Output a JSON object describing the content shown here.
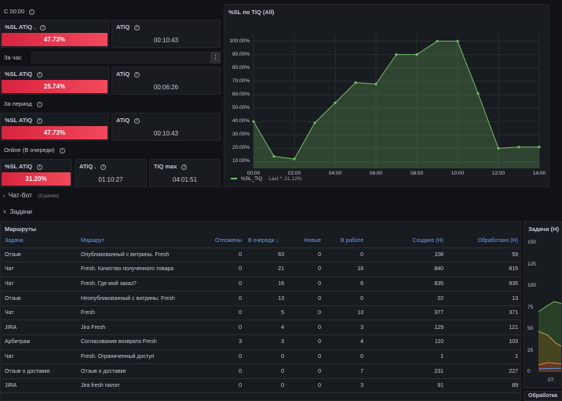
{
  "sections": {
    "since_midnight": "С 00:00",
    "per_hour": "За час",
    "per_period": "За период",
    "online": "Online (В очереди)"
  },
  "stats": {
    "r1_sl": {
      "title": "%SL ATiQ .",
      "value": "47.73%"
    },
    "r1_atiq": {
      "title": "ATiQ",
      "value": "00:10:43"
    },
    "r2_sl": {
      "title": "%SL ATiQ",
      "value": "25.74%"
    },
    "r2_atiq": {
      "title": "ATiQ",
      "value": "00:06:26"
    },
    "r3_sl": {
      "title": "%SL ATiQ",
      "value": "47.73%"
    },
    "r3_atiq": {
      "title": "ATiQ",
      "value": "00:10:43"
    },
    "r4_sl": {
      "title": "%SL ATiQ",
      "value": "31.20%"
    },
    "r4_atiq": {
      "title": "ATiQ .",
      "value": "01:10:27"
    },
    "r4_tiqmax": {
      "title": "TiQ max",
      "value": "04:01:51"
    }
  },
  "menu_icon": "more-vertical-icon",
  "colors": {
    "red": "#f2495c",
    "green": "#73bf69",
    "blue_header": "#6e9fff",
    "bg": "#111217",
    "panel": "#181b1f"
  },
  "chart_panel": {
    "title": "%SL по TiQ (All)"
  },
  "chart_data": {
    "type": "area",
    "x": [
      "00:00",
      "01:00",
      "02:00",
      "03:00",
      "04:00",
      "05:00",
      "06:00",
      "07:00",
      "08:00",
      "09:00",
      "10:00",
      "11:00",
      "12:00",
      "13:00",
      "14:00"
    ],
    "y_ticks": [
      "100.00%",
      "90.00%",
      "80.00%",
      "70.00%",
      "60.00%",
      "50.00%",
      "40.00%",
      "30.00%",
      "20.00%",
      "10.00%"
    ],
    "x_ticks": [
      "00:00",
      "02:00",
      "04:00",
      "06:00",
      "08:00",
      "10:00",
      "12:00",
      "14:00"
    ],
    "ylim": [
      5,
      105
    ],
    "series": [
      {
        "name": "%SL_TiQ",
        "values": [
          40,
          14,
          12,
          39,
          54,
          69,
          68,
          90,
          90,
          100,
          100,
          61,
          20,
          21,
          21
        ]
      }
    ],
    "legend_last": "Last *: 21.12%",
    "grid": true,
    "legend_placement": "bottom-left"
  },
  "rows": {
    "chatbot": {
      "title": "Чат-бот",
      "sub": "(3 panels)"
    },
    "tasks": {
      "title": "Задачи"
    }
  },
  "table_panel": {
    "title": "Маршруты",
    "columns": [
      "Задача",
      "Маршрут",
      "Отложены",
      "В очереди ↓",
      "Новые",
      "В работе",
      "Создано (H)",
      "Обработано (H)"
    ],
    "rows": [
      [
        "Отзыв",
        "Опубликованный с витрины. Fresh",
        "0",
        "63",
        "0",
        "0",
        "108",
        "59"
      ],
      [
        "Чат",
        "Fresh. Качество полученного товара",
        "0",
        "21",
        "0",
        "18",
        "840",
        "815"
      ],
      [
        "Чат",
        "Fresh. Где мой заказ?",
        "0",
        "16",
        "0",
        "6",
        "835",
        "835"
      ],
      [
        "Отзыв",
        "Неопубликованный с витрины. Fresh",
        "0",
        "13",
        "0",
        "0",
        "22",
        "13"
      ],
      [
        "Чат",
        "Fresh",
        "0",
        "5",
        "0",
        "13",
        "377",
        "371"
      ],
      [
        "JIRA",
        "Jira Fresh",
        "0",
        "4",
        "0",
        "3",
        "129",
        "121"
      ],
      [
        "Арбитраж",
        "Согласования возврата Fresh",
        "3",
        "3",
        "0",
        "4",
        "110",
        "103"
      ],
      [
        "Чат",
        "Fresh. Ограниченный доступ",
        "0",
        "0",
        "0",
        "0",
        "1",
        "1"
      ],
      [
        "Отзыв о доставке",
        "Отзыв о доставке",
        "0",
        "0",
        "0",
        "7",
        "231",
        "227"
      ],
      [
        "JIRA",
        "Jira fresh пилот",
        "0",
        "0",
        "0",
        "3",
        "91",
        "89"
      ]
    ]
  },
  "side_panel": {
    "title": "Задачи (H)",
    "y_ticks": [
      "150",
      "125",
      "100",
      "75",
      "50",
      "25",
      "0"
    ],
    "x_tick": "07:",
    "bottom_title": "Обработка"
  }
}
